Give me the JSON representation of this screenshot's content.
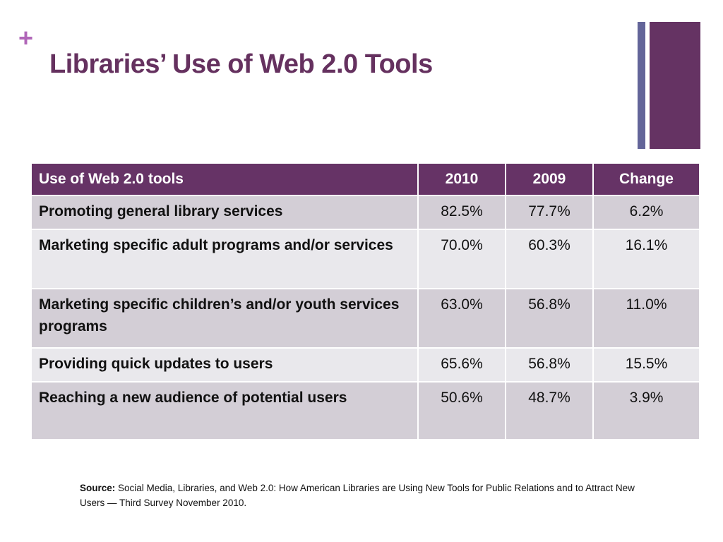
{
  "slide": {
    "plus_glyph": "+",
    "title": "Libraries’ Use of Web 2.0 Tools"
  },
  "table": {
    "headers": [
      "Use of Web 2.0 tools",
      "2010",
      "2009",
      "Change"
    ],
    "rows": [
      {
        "label": "Promoting general library services",
        "y2010": "82.5%",
        "y2009": "77.7%",
        "change": "6.2%"
      },
      {
        "label": "Marketing specific adult programs and/or services",
        "y2010": "70.0%",
        "y2009": "60.3%",
        "change": "16.1%"
      },
      {
        "label": "Marketing specific children’s and/or youth services programs",
        "y2010": "63.0%",
        "y2009": "56.8%",
        "change": "11.0%"
      },
      {
        "label": "Providing quick updates to users",
        "y2010": "65.6%",
        "y2009": "56.8%",
        "change": "15.5%"
      },
      {
        "label": "Reaching a new audience of potential users",
        "y2010": "50.6%",
        "y2009": "48.7%",
        "change": "3.9%"
      }
    ]
  },
  "source": {
    "label": "Source:",
    "text": " Social Media, Libraries, and Web 2.0: How American Libraries are Using New Tools for Public Relations and to Attract New Users — Third Survey November 2010."
  },
  "colors": {
    "title": "#65315f",
    "plus": "#b066b8",
    "header_bg": "#663366",
    "accent_bar_thin": "#636599",
    "accent_bar_thick": "#653363",
    "row_odd": "#d3ced6",
    "row_even": "#e9e8ec"
  }
}
